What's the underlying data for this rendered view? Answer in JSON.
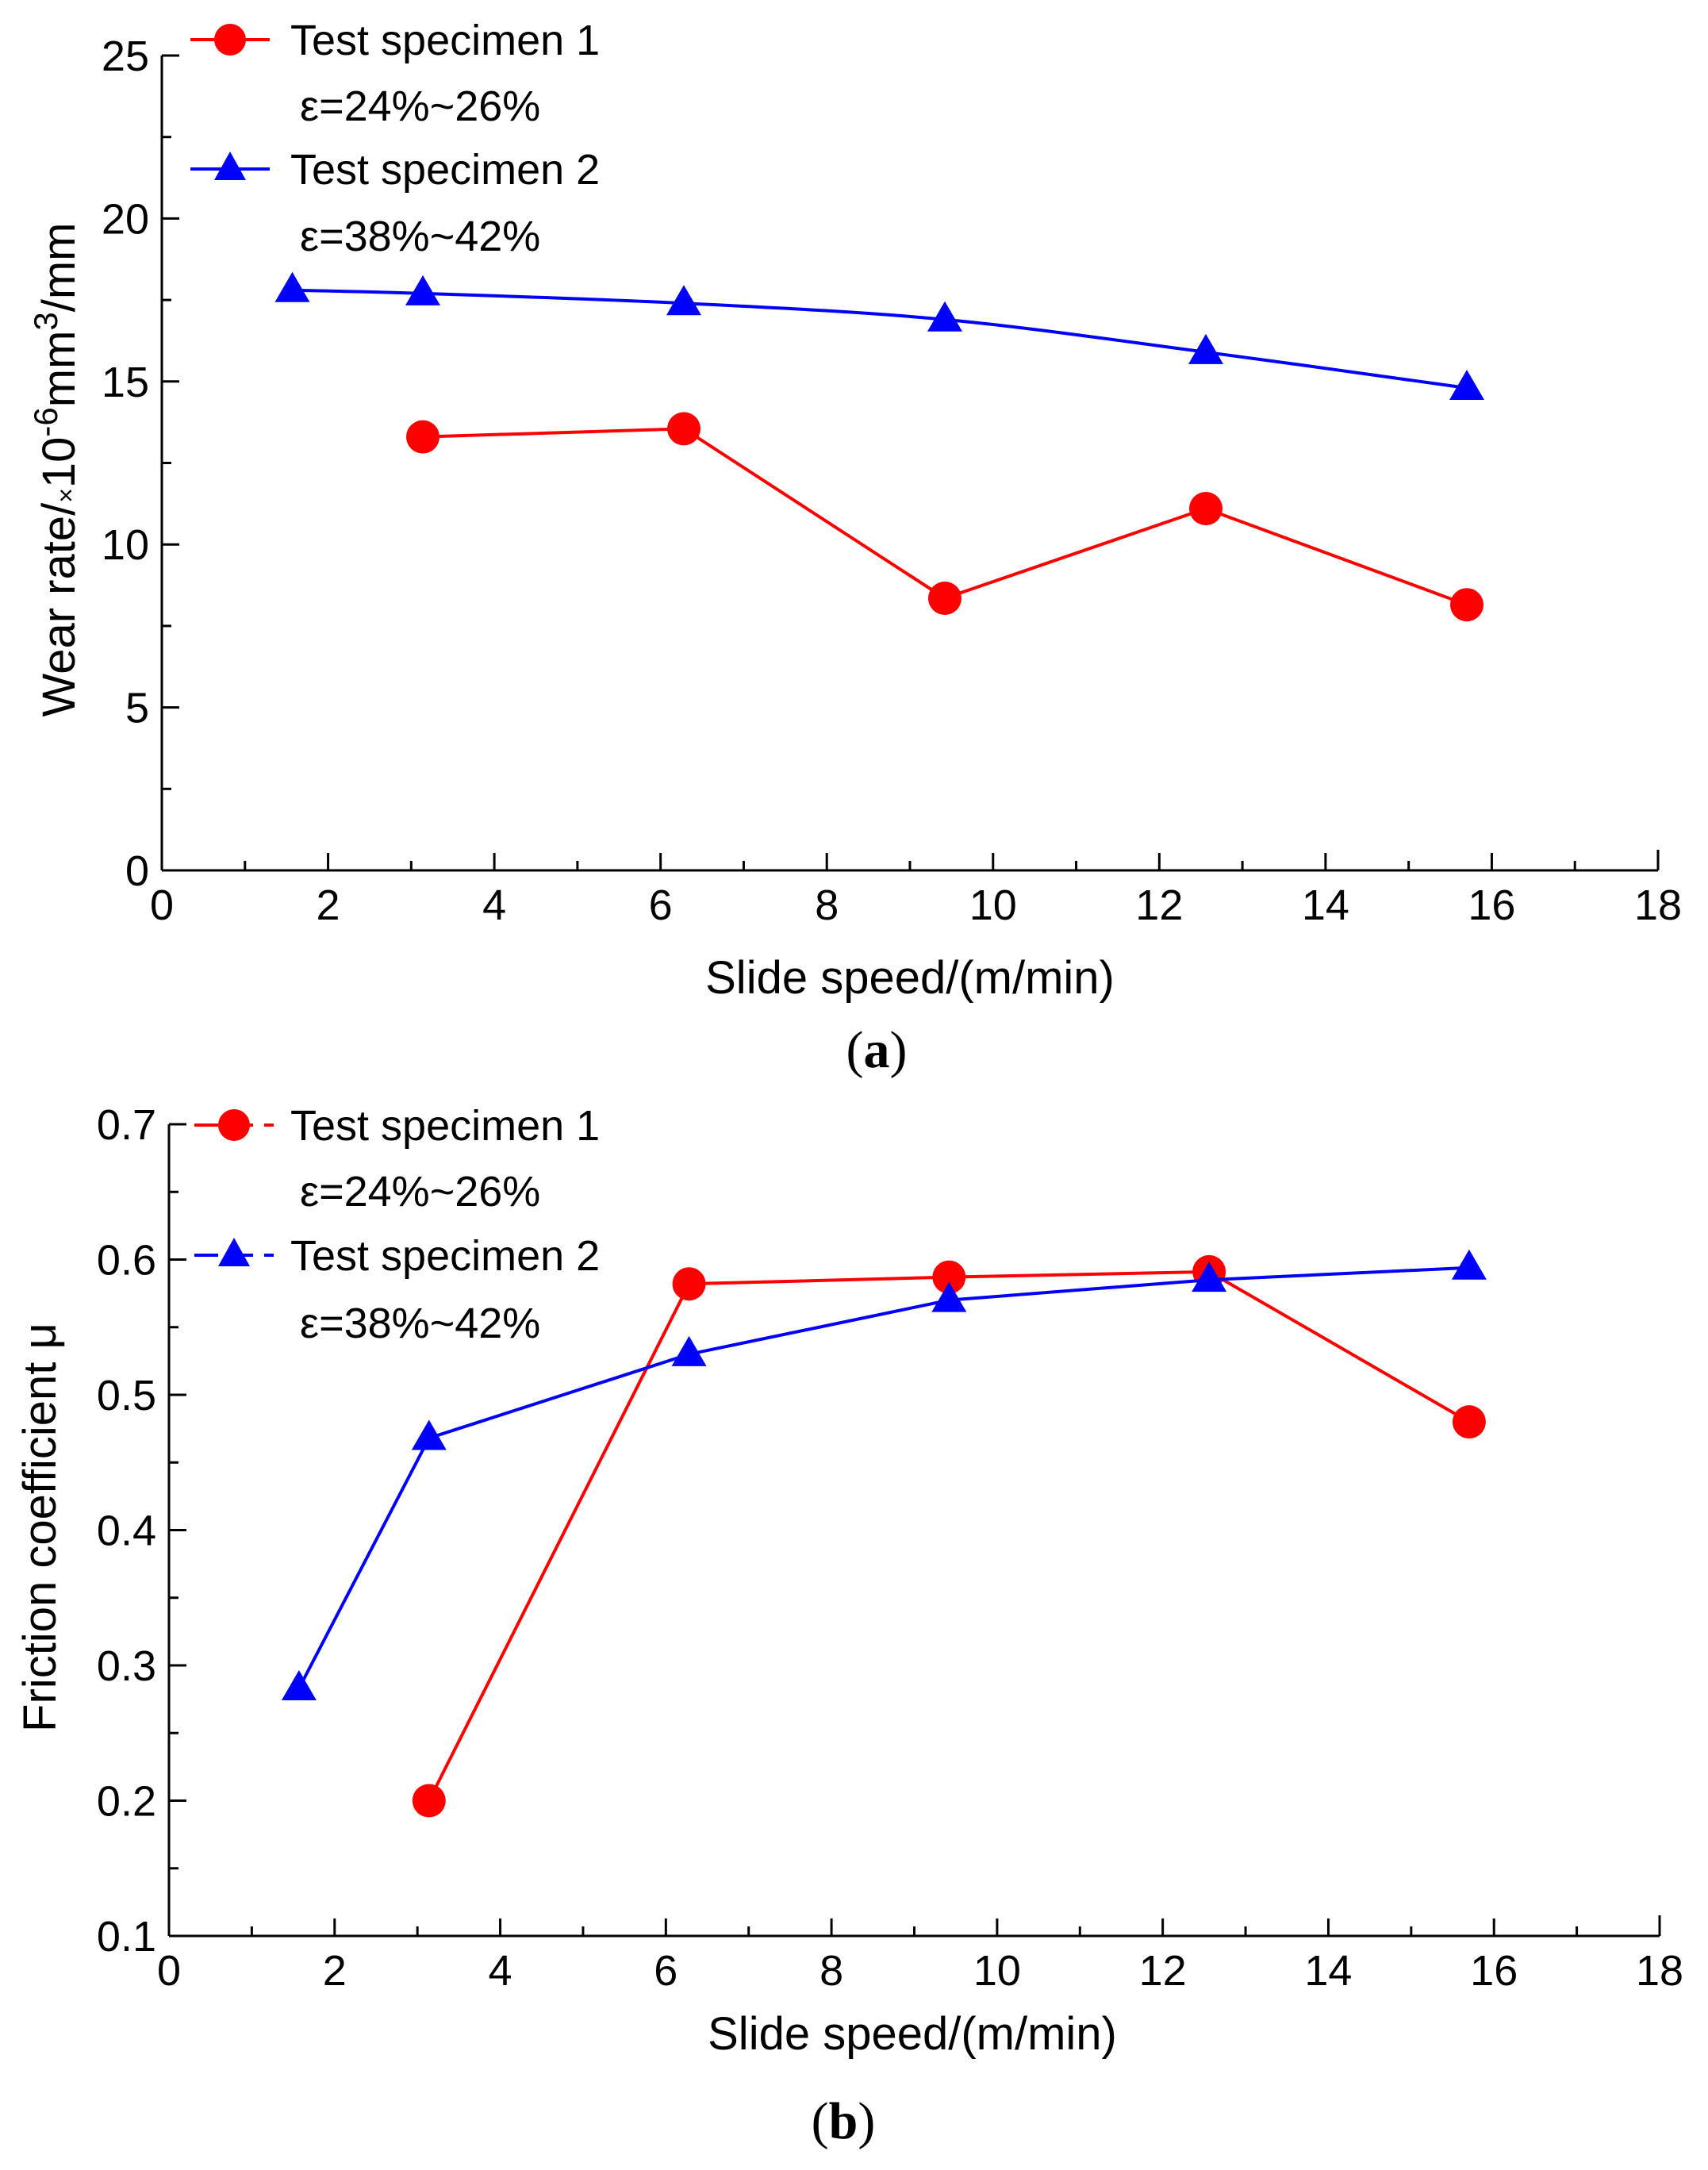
{
  "chart_data": [
    {
      "type": "line",
      "panel": "a",
      "panel_label": {
        "open": "(",
        "letter": "a",
        "close": ")"
      },
      "xlabel": "Slide speed/(m/min)",
      "ylabel": {
        "main": "Wear rate/",
        "times": "×",
        "ten": "10",
        "exp": "-6",
        "unit": "mm",
        "unit_exp": "3",
        "tail": "/mm"
      },
      "xlim": [
        0,
        18
      ],
      "ylim": [
        0,
        25
      ],
      "xticks": [
        0,
        2,
        4,
        6,
        8,
        10,
        12,
        14,
        16,
        18
      ],
      "yticks": [
        0,
        5,
        10,
        15,
        20,
        25
      ],
      "series": [
        {
          "name": "Test specimen 1",
          "sublabel": "ε=24%~26%",
          "color": "#ff0000",
          "marker": "circle",
          "x": [
            3.14,
            6.28,
            9.42,
            12.56,
            15.7
          ],
          "y": [
            13.3,
            13.55,
            8.35,
            11.1,
            8.15
          ]
        },
        {
          "name": "Test specimen 2",
          "sublabel": "ε=38%~42%",
          "color": "#0000ff",
          "marker": "triangle",
          "x": [
            1.57,
            3.14,
            6.28,
            9.42,
            12.56,
            15.7
          ],
          "y": [
            17.8,
            17.7,
            17.4,
            16.9,
            15.9,
            14.8
          ]
        }
      ]
    },
    {
      "type": "line",
      "panel": "b",
      "panel_label": {
        "open": "(",
        "letter": "b",
        "close": ")"
      },
      "xlabel": "Slide speed/(m/min)",
      "ylabel": {
        "main": "Friction coefficient μ"
      },
      "xlim": [
        0,
        18
      ],
      "ylim": [
        0.1,
        0.7
      ],
      "xticks": [
        0,
        2,
        4,
        6,
        8,
        10,
        12,
        14,
        16,
        18
      ],
      "yticks": [
        0.1,
        0.2,
        0.3,
        0.4,
        0.5,
        0.6,
        0.7
      ],
      "series": [
        {
          "name": "Test specimen 1",
          "sublabel": "ε=24%~26%",
          "color": "#ff0000",
          "marker": "circle",
          "x": [
            3.14,
            6.28,
            9.42,
            12.56,
            15.7
          ],
          "y": [
            0.2,
            0.582,
            0.587,
            0.591,
            0.48
          ]
        },
        {
          "name": "Test specimen 2",
          "sublabel": "ε=38%~42%",
          "color": "#0000ff",
          "marker": "triangle",
          "x": [
            1.57,
            3.14,
            6.28,
            9.42,
            12.56,
            15.7
          ],
          "y": [
            0.283,
            0.468,
            0.53,
            0.57,
            0.585,
            0.594
          ]
        }
      ]
    }
  ]
}
